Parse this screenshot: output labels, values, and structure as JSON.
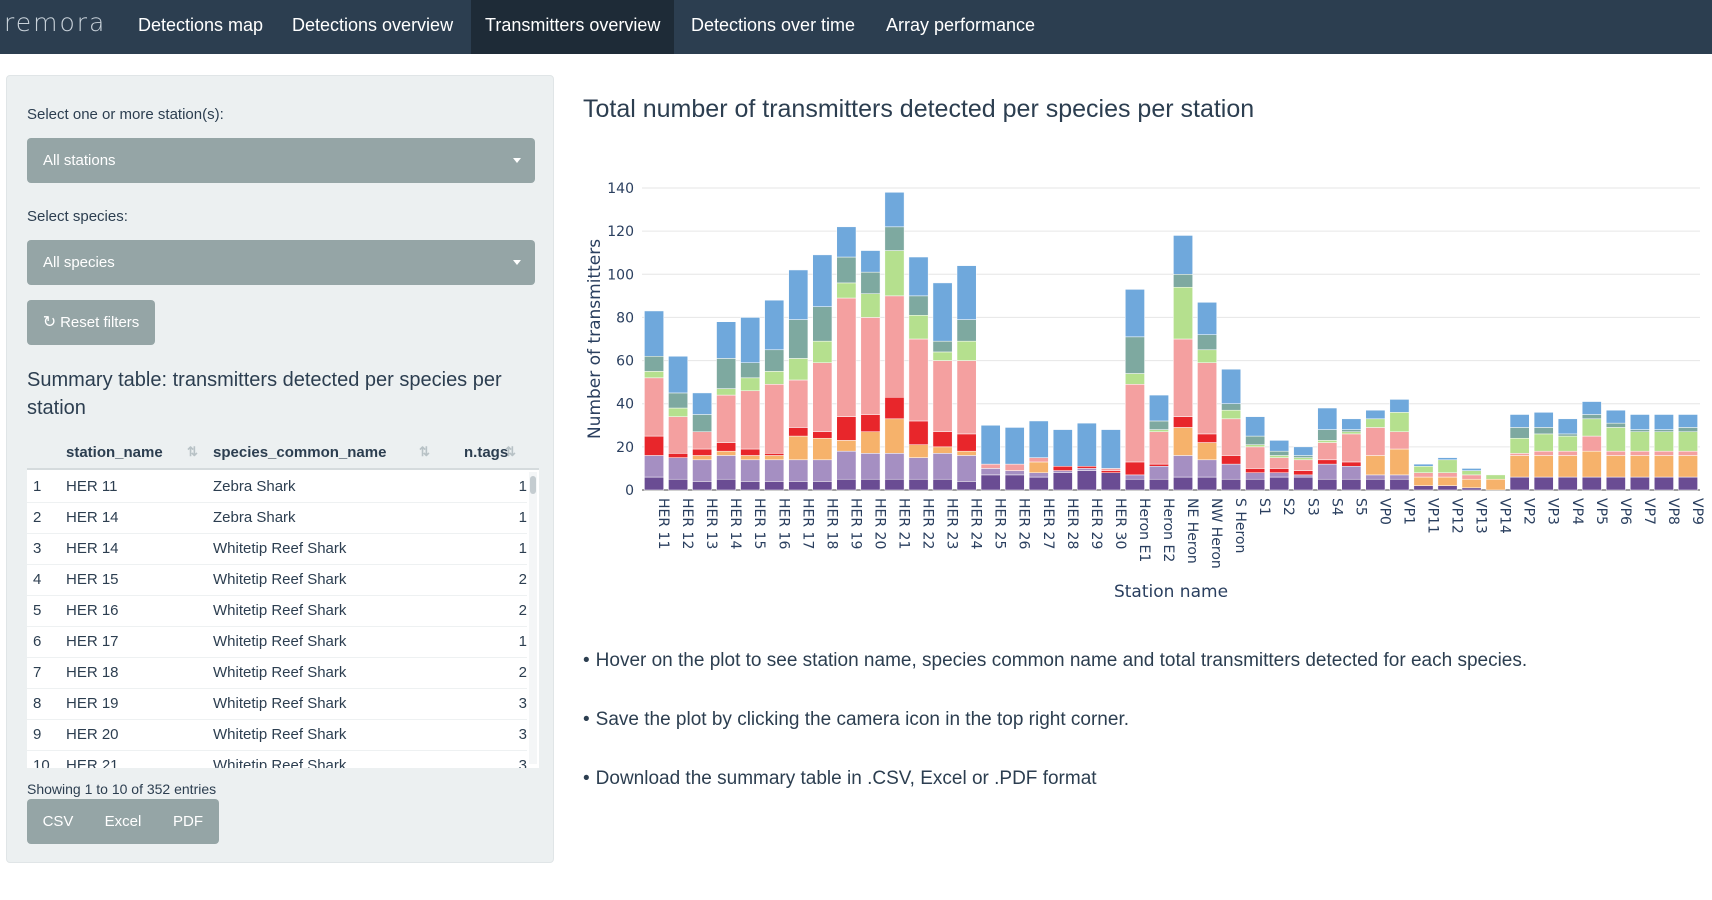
{
  "navbar": {
    "brand": "remora",
    "tabs": [
      {
        "label": "Detections map"
      },
      {
        "label": "Detections overview"
      },
      {
        "label": "Transmitters overview",
        "active": true
      },
      {
        "label": "Detections over time"
      },
      {
        "label": "Array performance"
      }
    ]
  },
  "sidebar": {
    "station_label": "Select one or more station(s):",
    "station_value": "All stations",
    "species_label": "Select species:",
    "species_value": "All species",
    "reset_label": "Reset filters",
    "summary_title": "Summary table: transmitters detected per species per station",
    "table": {
      "headers": [
        "station_name",
        "species_common_name",
        "n.tags"
      ],
      "rows": [
        {
          "n": "1",
          "station": "HER 11",
          "species": "Zebra Shark",
          "tags": "1"
        },
        {
          "n": "2",
          "station": "HER 14",
          "species": "Zebra Shark",
          "tags": "1"
        },
        {
          "n": "3",
          "station": "HER 14",
          "species": "Whitetip Reef Shark",
          "tags": "1"
        },
        {
          "n": "4",
          "station": "HER 15",
          "species": "Whitetip Reef Shark",
          "tags": "2"
        },
        {
          "n": "5",
          "station": "HER 16",
          "species": "Whitetip Reef Shark",
          "tags": "2"
        },
        {
          "n": "6",
          "station": "HER 17",
          "species": "Whitetip Reef Shark",
          "tags": "1"
        },
        {
          "n": "7",
          "station": "HER 18",
          "species": "Whitetip Reef Shark",
          "tags": "2"
        },
        {
          "n": "8",
          "station": "HER 19",
          "species": "Whitetip Reef Shark",
          "tags": "3"
        },
        {
          "n": "9",
          "station": "HER 20",
          "species": "Whitetip Reef Shark",
          "tags": "3"
        },
        {
          "n": "10",
          "station": "HER 21",
          "species": "Whitetip Reef Shark",
          "tags": "3"
        }
      ]
    },
    "showing": "Showing 1 to 10 of 352 entries",
    "export_buttons": [
      "CSV",
      "Excel",
      "PDF"
    ]
  },
  "main": {
    "title": "Total number of transmitters detected per species per station",
    "bullets": [
      "Hover on the plot to see station name, species common name and total transmitters detected for each species.",
      "Save the plot by clicking the camera icon in the top right corner.",
      "Download the summary table in .CSV, Excel or .PDF format"
    ]
  },
  "chart_data": {
    "type": "bar",
    "stacked": true,
    "xlabel": "Station name",
    "ylabel": "Number of transmitters",
    "ylim": [
      0,
      140
    ],
    "yticks": [
      0,
      20,
      40,
      60,
      80,
      100,
      120,
      140
    ],
    "grid": true,
    "categories": [
      "HER 11",
      "HER 12",
      "HER 13",
      "HER 14",
      "HER 15",
      "HER 16",
      "HER 17",
      "HER 18",
      "HER 19",
      "HER 20",
      "HER 21",
      "HER 22",
      "HER 23",
      "HER 24",
      "HER 25",
      "HER 26",
      "HER 27",
      "HER 28",
      "HER 29",
      "HER 30",
      "Heron E1",
      "Heron E2",
      "NE Heron",
      "NW Heron",
      "S Heron",
      "S1",
      "S2",
      "S3",
      "S4",
      "S5",
      "VP0",
      "VP1",
      "VP11",
      "VP12",
      "VP13",
      "VP14",
      "VP2",
      "VP3",
      "VP4",
      "VP5",
      "VP6",
      "VP7",
      "VP8",
      "VP9"
    ],
    "colors": [
      "#6a4c93",
      "#a58fc2",
      "#f6b26b",
      "#e8262b",
      "#f4a0a0",
      "#b5e08e",
      "#7ea9a0",
      "#6fa8dc"
    ],
    "series": [
      {
        "values": [
          6,
          5,
          4,
          5,
          4,
          4,
          4,
          4,
          5,
          5,
          5,
          5,
          5,
          4,
          7,
          7,
          6,
          8,
          9,
          8,
          5,
          5,
          6,
          6,
          5,
          5,
          6,
          6,
          5,
          5,
          5,
          5,
          2,
          2,
          1,
          0,
          6,
          6,
          6,
          6,
          6,
          6,
          6,
          6
        ]
      },
      {
        "values": [
          10,
          10,
          10,
          11,
          10,
          10,
          10,
          10,
          13,
          12,
          12,
          10,
          12,
          12,
          3,
          2,
          2,
          1,
          1,
          0,
          2,
          6,
          10,
          8,
          7,
          3,
          2,
          1,
          7,
          6,
          2,
          2,
          0,
          0,
          0,
          0,
          0,
          0,
          0,
          0,
          0,
          0,
          0,
          0
        ]
      },
      {
        "values": [
          0,
          0,
          2,
          2,
          2,
          2,
          11,
          10,
          5,
          10,
          16,
          6,
          3,
          2,
          0,
          0,
          5,
          0,
          0,
          0,
          0,
          0,
          13,
          8,
          0,
          0,
          0,
          0,
          0,
          0,
          9,
          12,
          4,
          4,
          4,
          5,
          10,
          10,
          10,
          12,
          10,
          10,
          10,
          10
        ]
      },
      {
        "values": [
          9,
          2,
          3,
          4,
          3,
          1,
          4,
          3,
          11,
          8,
          10,
          11,
          7,
          8,
          0,
          0,
          0,
          2,
          1,
          1,
          6,
          1,
          5,
          4,
          4,
          2,
          2,
          2,
          2,
          2,
          0,
          0,
          0,
          0,
          0,
          0,
          0,
          0,
          0,
          0,
          0,
          0,
          0,
          0
        ]
      },
      {
        "values": [
          27,
          17,
          8,
          22,
          27,
          32,
          22,
          32,
          55,
          45,
          47,
          38,
          33,
          34,
          2,
          3,
          2,
          0,
          0,
          1,
          36,
          15,
          36,
          33,
          17,
          10,
          5,
          5,
          8,
          13,
          13,
          8,
          2,
          2,
          2,
          0,
          1,
          2,
          2,
          7,
          2,
          2,
          2,
          2
        ]
      },
      {
        "values": [
          3,
          4,
          0,
          3,
          6,
          6,
          10,
          10,
          7,
          11,
          21,
          11,
          4,
          9,
          0,
          0,
          0,
          0,
          0,
          0,
          5,
          1,
          24,
          6,
          4,
          1,
          1,
          1,
          1,
          1,
          4,
          9,
          3,
          6,
          2,
          2,
          7,
          8,
          7,
          8,
          11,
          9,
          9,
          9
        ]
      },
      {
        "values": [
          7,
          7,
          8,
          14,
          7,
          10,
          18,
          16,
          12,
          10,
          11,
          9,
          5,
          10,
          0,
          0,
          0,
          0,
          0,
          0,
          17,
          4,
          6,
          7,
          3,
          4,
          2,
          1,
          5,
          1,
          0,
          0,
          0,
          0,
          0,
          0,
          5,
          3,
          1,
          2,
          2,
          1,
          1,
          2
        ]
      },
      {
        "values": [
          21,
          17,
          10,
          17,
          21,
          23,
          23,
          24,
          14,
          10,
          16,
          18,
          27,
          25,
          18,
          17,
          17,
          17,
          20,
          18,
          22,
          12,
          18,
          15,
          16,
          9,
          5,
          4,
          10,
          5,
          4,
          6,
          1,
          1,
          1,
          0,
          6,
          7,
          7,
          6,
          6,
          7,
          7,
          6
        ]
      }
    ]
  }
}
